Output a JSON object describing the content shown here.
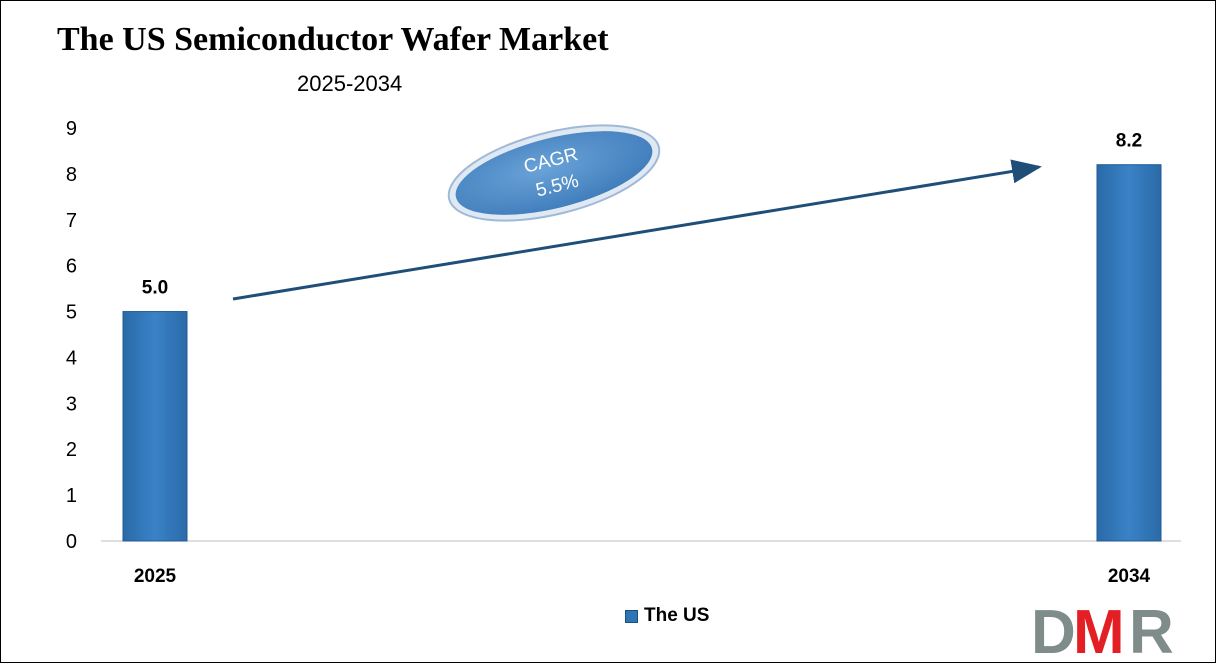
{
  "chart_data": {
    "type": "bar",
    "title": "The US Semiconductor Wafer Market",
    "subtitle": "2025-2034",
    "categories": [
      "2025",
      "2034"
    ],
    "series": [
      {
        "name": "The US",
        "values": [
          5.0,
          8.2
        ]
      }
    ],
    "data_labels": [
      "5.0",
      "8.2"
    ],
    "ylim": [
      0,
      9
    ],
    "yticks": [
      0,
      1,
      2,
      3,
      4,
      5,
      6,
      7,
      8,
      9
    ],
    "grid": false,
    "legend": "bottom",
    "annotation": {
      "line1": "CAGR",
      "line2": "5.5%"
    },
    "colors": {
      "bar": "#2e75b6",
      "arrow": "#1f4e79",
      "ellipse": "#4a89c8"
    }
  },
  "logo": {
    "text": "DMR",
    "colors": [
      "#7f8c8a",
      "#e31e24",
      "#7f8c8a"
    ]
  }
}
